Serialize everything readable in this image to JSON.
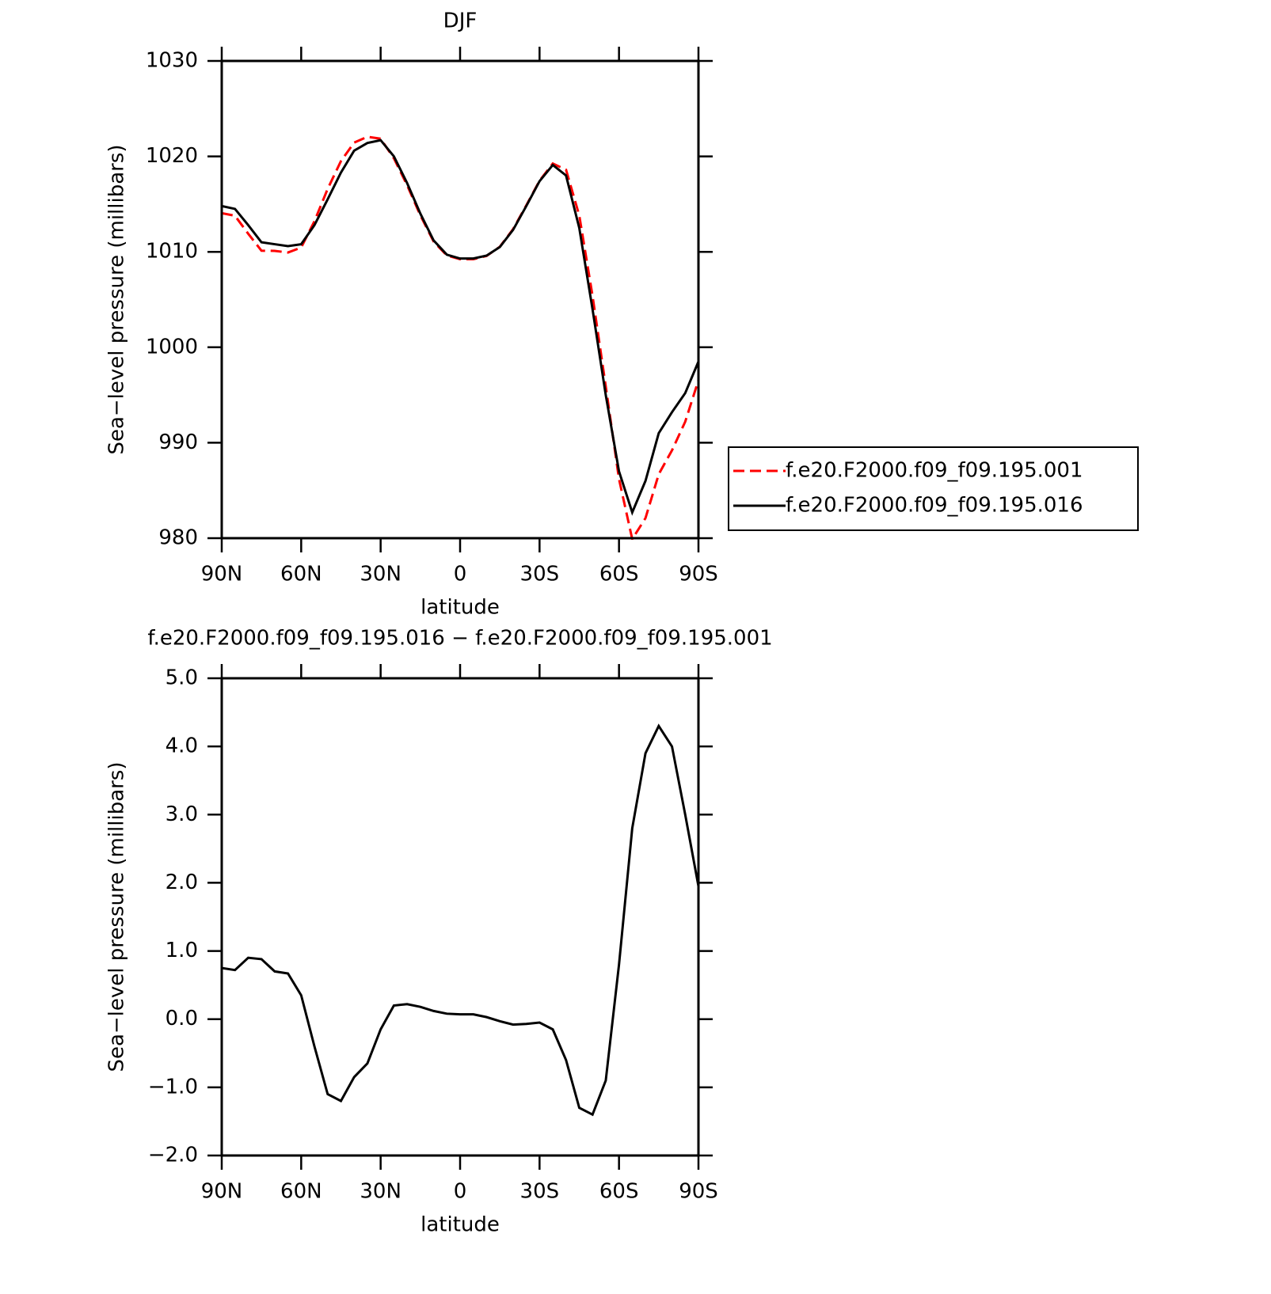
{
  "chart_data": [
    {
      "type": "line",
      "title": "DJF",
      "xlabel": "latitude",
      "ylabel": "Sea−level pressure (millibars)",
      "x": [
        90,
        85,
        80,
        75,
        70,
        65,
        60,
        55,
        50,
        45,
        40,
        35,
        30,
        25,
        20,
        15,
        10,
        5,
        0,
        -5,
        -10,
        -15,
        -20,
        -25,
        -30,
        -35,
        -40,
        -45,
        -50,
        -55,
        -60,
        -65,
        -70,
        -75,
        -80,
        -85,
        -90
      ],
      "series": [
        {
          "name": "f.e20.F2000.f09_f09.195.001",
          "color": "#ff0000",
          "linestyle": "dashed",
          "values": [
            1014.05,
            1013.78,
            1011.9,
            1010.12,
            1010.1,
            1009.93,
            1010.45,
            1013.2,
            1016.6,
            1019.5,
            1021.45,
            1022.05,
            1021.85,
            1019.8,
            1016.98,
            1013.82,
            1011.08,
            1009.62,
            1009.23,
            1009.23,
            1009.57,
            1010.53,
            1012.38,
            1014.87,
            1017.45,
            1019.25,
            1018.6,
            1013.8,
            1005.4,
            995.9,
            986.2,
            979.9,
            982.1,
            986.7,
            989.2,
            992.2,
            996.55
          ]
        },
        {
          "name": "f.e20.F2000.f09_f09.195.016",
          "color": "#000000",
          "linestyle": "solid",
          "values": [
            1014.8,
            1014.5,
            1012.8,
            1011.0,
            1010.8,
            1010.6,
            1010.8,
            1012.8,
            1015.5,
            1018.3,
            1020.6,
            1021.4,
            1021.7,
            1020.0,
            1017.2,
            1014.0,
            1011.2,
            1009.7,
            1009.3,
            1009.3,
            1009.6,
            1010.5,
            1012.3,
            1014.8,
            1017.4,
            1019.1,
            1018.0,
            1012.5,
            1004.0,
            995.0,
            987.0,
            982.7,
            986.0,
            991.0,
            993.2,
            995.2,
            998.5
          ]
        }
      ],
      "xlim": [
        90,
        -90
      ],
      "xticks": [
        {
          "value": 90,
          "label": "90N"
        },
        {
          "value": 60,
          "label": "60N"
        },
        {
          "value": 30,
          "label": "30N"
        },
        0,
        {
          "value": -30,
          "label": "30S"
        },
        {
          "value": -60,
          "label": "60S"
        },
        {
          "value": -90,
          "label": "90S"
        }
      ],
      "ylim": [
        980,
        1030
      ],
      "yticks": [
        980,
        990,
        1000,
        1010,
        1020,
        1030
      ],
      "legend": "outside-right"
    },
    {
      "type": "line",
      "title": "f.e20.F2000.f09_f09.195.016 − f.e20.F2000.f09_f09.195.001",
      "xlabel": "latitude",
      "ylabel": "Sea−level pressure (millibars)",
      "x": [
        90,
        85,
        80,
        75,
        70,
        65,
        60,
        55,
        50,
        45,
        40,
        35,
        30,
        25,
        20,
        15,
        10,
        5,
        0,
        -5,
        -10,
        -15,
        -20,
        -25,
        -30,
        -35,
        -40,
        -45,
        -50,
        -55,
        -60,
        -65,
        -70,
        -75,
        -80,
        -85,
        -90
      ],
      "series": [
        {
          "color": "#000000",
          "linestyle": "solid",
          "values": [
            0.75,
            0.72,
            0.9,
            0.88,
            0.7,
            0.67,
            0.35,
            -0.4,
            -1.1,
            -1.2,
            -0.85,
            -0.65,
            -0.15,
            0.2,
            0.22,
            0.18,
            0.12,
            0.08,
            0.07,
            0.07,
            0.03,
            -0.03,
            -0.08,
            -0.07,
            -0.05,
            -0.15,
            -0.6,
            -1.3,
            -1.4,
            -0.9,
            0.8,
            2.8,
            3.9,
            4.3,
            4.0,
            3.0,
            1.95
          ]
        }
      ],
      "xlim": [
        90,
        -90
      ],
      "xticks": [
        {
          "value": 90,
          "label": "90N"
        },
        {
          "value": 60,
          "label": "60N"
        },
        {
          "value": 30,
          "label": "30N"
        },
        0,
        {
          "value": -30,
          "label": "30S"
        },
        {
          "value": -60,
          "label": "60S"
        },
        {
          "value": -90,
          "label": "90S"
        }
      ],
      "ylim": [
        -2,
        5
      ],
      "yticks": [
        {
          "value": -2,
          "label": "−2.0"
        },
        {
          "value": -1,
          "label": "−1.0"
        },
        {
          "value": 0,
          "label": "0.0"
        },
        {
          "value": 1,
          "label": "1.0"
        },
        {
          "value": 2,
          "label": "2.0"
        },
        {
          "value": 3,
          "label": "3.0"
        },
        {
          "value": 4,
          "label": "4.0"
        },
        {
          "value": 5,
          "label": "5.0"
        }
      ]
    }
  ]
}
